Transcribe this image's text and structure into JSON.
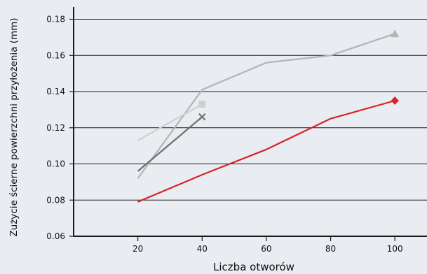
{
  "chart_data": {
    "type": "line",
    "title": "",
    "xlabel": "Liczba otworów",
    "ylabel": "Zużycie ścierne powierzchni przyłożenia (mm)",
    "xlim": [
      0,
      110
    ],
    "ylim": [
      0.06,
      0.186
    ],
    "x_ticks": [
      20,
      40,
      60,
      80,
      100
    ],
    "x_tick_labels": [
      "20",
      "40",
      "60",
      "80",
      "100"
    ],
    "y_ticks": [
      0.06,
      0.08,
      0.1,
      0.12,
      0.14,
      0.16,
      0.18
    ],
    "y_tick_labels": [
      "0.06",
      "0.08",
      "0.10",
      "0.12",
      "0.14",
      "0.16",
      "0.18"
    ],
    "grid": "horizontal",
    "background": "#e9ecf1",
    "series": [
      {
        "color": "#b4b4b4",
        "marker": "triangle",
        "points": [
          [
            20,
            0.092
          ],
          [
            40,
            0.141
          ],
          [
            60,
            0.156
          ],
          [
            80,
            0.16
          ],
          [
            100,
            0.172
          ]
        ]
      },
      {
        "color": "#cfcfcf",
        "marker": "square",
        "points": [
          [
            20,
            0.113
          ],
          [
            40,
            0.133
          ]
        ]
      },
      {
        "color": "#6e6e6e",
        "marker": "x",
        "points": [
          [
            20,
            0.096
          ],
          [
            40,
            0.126
          ]
        ]
      },
      {
        "color": "#d6242a",
        "marker": "diamond",
        "points": [
          [
            20,
            0.079
          ],
          [
            40,
            0.094
          ],
          [
            60,
            0.108
          ],
          [
            80,
            0.125
          ],
          [
            100,
            0.135
          ]
        ]
      }
    ]
  }
}
